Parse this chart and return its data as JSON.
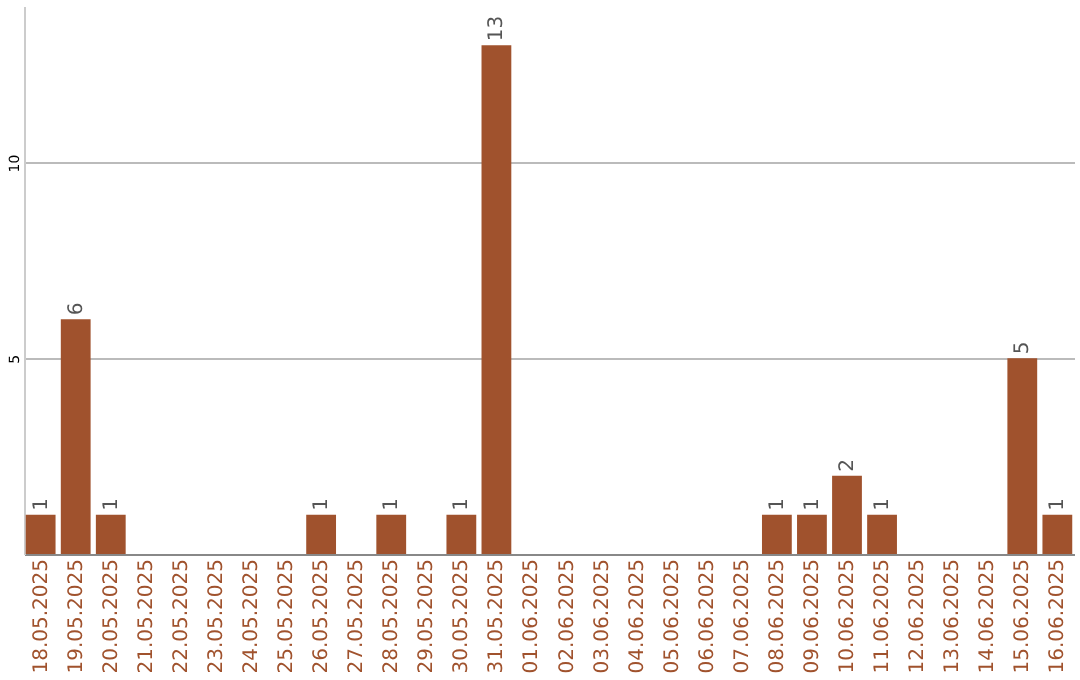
{
  "chart_data": {
    "type": "bar",
    "categories": [
      "18.05.2025",
      "19.05.2025",
      "20.05.2025",
      "21.05.2025",
      "22.05.2025",
      "23.05.2025",
      "24.05.2025",
      "25.05.2025",
      "26.05.2025",
      "27.05.2025",
      "28.05.2025",
      "29.05.2025",
      "30.05.2025",
      "31.05.2025",
      "01.06.2025",
      "02.06.2025",
      "03.06.2025",
      "04.06.2025",
      "05.06.2025",
      "06.06.2025",
      "07.06.2025",
      "08.06.2025",
      "09.06.2025",
      "10.06.2025",
      "11.06.2025",
      "12.06.2025",
      "13.06.2025",
      "14.06.2025",
      "15.06.2025",
      "16.06.2025"
    ],
    "values": [
      1,
      6,
      1,
      0,
      0,
      0,
      0,
      0,
      1,
      0,
      1,
      0,
      1,
      13,
      0,
      0,
      0,
      0,
      0,
      0,
      0,
      1,
      1,
      2,
      1,
      0,
      0,
      0,
      5,
      1
    ],
    "value_labels": [
      "1",
      "6",
      "1",
      null,
      null,
      null,
      null,
      null,
      "1",
      null,
      "1",
      null,
      "1",
      "13",
      null,
      null,
      null,
      null,
      null,
      null,
      null,
      "1",
      "1",
      "2",
      "1",
      null,
      null,
      null,
      "5",
      "1"
    ],
    "color": "#a0522d",
    "ylim": [
      0,
      14
    ],
    "yticks": [
      5,
      10
    ],
    "grid": "y"
  }
}
